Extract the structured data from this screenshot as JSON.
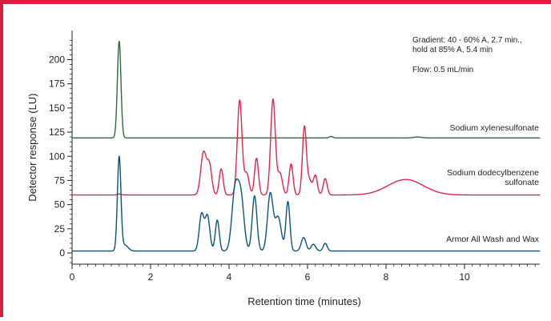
{
  "chart_data": {
    "type": "line",
    "xlabel": "Retention time (minutes)",
    "ylabel": "Detector response (LU)",
    "xlim": [
      0,
      12
    ],
    "ylim": [
      -10,
      230
    ],
    "xticks": [
      0,
      2,
      4,
      6,
      8,
      10
    ],
    "yticks": [
      0,
      25,
      50,
      75,
      100,
      125,
      150,
      175,
      200
    ],
    "grid": false,
    "annotations": [
      "Gradient: 40 - 60% A, 2.7 min.,",
      "hold at 85% A, 5.4 min",
      "Flow: 0.5 mL/min"
    ],
    "series": [
      {
        "name": "Sodium xylenesulfonate",
        "label_lines": [
          "Sodium xylenesulfonate"
        ],
        "color": "#2e6b3a",
        "baseline": 119,
        "peaks": [
          {
            "t": 1.2,
            "h": 100,
            "w": 0.045
          },
          {
            "t": 6.6,
            "h": 1.5,
            "w": 0.05
          },
          {
            "t": 8.8,
            "h": 1,
            "w": 0.1
          }
        ]
      },
      {
        "name": "Sodium dodecylbenzene sulfonate",
        "label_lines": [
          "Sodium dodecylbenzene",
          "sulfonate"
        ],
        "color": "#e0254b",
        "baseline": 60,
        "peaks": [
          {
            "t": 1.2,
            "h": 1,
            "w": 0.05
          },
          {
            "t": 3.35,
            "h": 44,
            "w": 0.07
          },
          {
            "t": 3.5,
            "h": 30,
            "w": 0.06
          },
          {
            "t": 3.8,
            "h": 27,
            "w": 0.05
          },
          {
            "t": 4.27,
            "h": 98,
            "w": 0.06
          },
          {
            "t": 4.45,
            "h": 22,
            "w": 0.06
          },
          {
            "t": 4.7,
            "h": 38,
            "w": 0.05
          },
          {
            "t": 5.12,
            "h": 99,
            "w": 0.06
          },
          {
            "t": 5.3,
            "h": 22,
            "w": 0.06
          },
          {
            "t": 5.58,
            "h": 32,
            "w": 0.05
          },
          {
            "t": 5.92,
            "h": 70,
            "w": 0.05
          },
          {
            "t": 6.05,
            "h": 15,
            "w": 0.06
          },
          {
            "t": 6.2,
            "h": 20,
            "w": 0.05
          },
          {
            "t": 6.45,
            "h": 17,
            "w": 0.05
          },
          {
            "t": 8.5,
            "h": 16,
            "w": 0.45
          }
        ]
      },
      {
        "name": "Armor All Wash and Wax",
        "label_lines": [
          "Armor All Wash and Wax"
        ],
        "color": "#0a5378",
        "baseline": 2,
        "peaks": [
          {
            "t": 1.2,
            "h": 97,
            "w": 0.045
          },
          {
            "t": 1.35,
            "h": 6,
            "w": 0.08
          },
          {
            "t": 3.3,
            "h": 38,
            "w": 0.06
          },
          {
            "t": 3.45,
            "h": 36,
            "w": 0.06
          },
          {
            "t": 3.7,
            "h": 32,
            "w": 0.05
          },
          {
            "t": 4.15,
            "h": 60,
            "w": 0.08
          },
          {
            "t": 4.3,
            "h": 55,
            "w": 0.08
          },
          {
            "t": 4.65,
            "h": 57,
            "w": 0.06
          },
          {
            "t": 5.05,
            "h": 59,
            "w": 0.07
          },
          {
            "t": 5.25,
            "h": 35,
            "w": 0.08
          },
          {
            "t": 5.5,
            "h": 51,
            "w": 0.05
          },
          {
            "t": 5.9,
            "h": 14,
            "w": 0.06
          },
          {
            "t": 6.15,
            "h": 7,
            "w": 0.06
          },
          {
            "t": 6.45,
            "h": 8,
            "w": 0.05
          }
        ]
      }
    ]
  }
}
